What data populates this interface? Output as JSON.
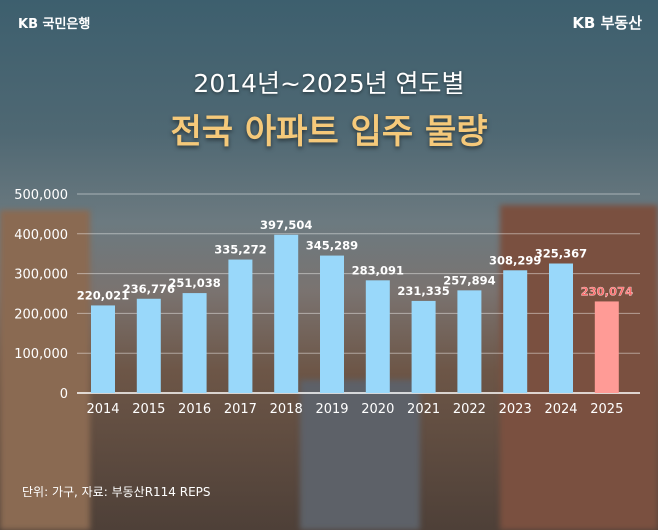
{
  "header": {
    "bank_logo": "KB 국민은행",
    "brand": "KB 부동산"
  },
  "title_line1": "2014년~2025년 연도별",
  "title_line2": "전국 아파트 입주 물량",
  "footer": "단위: 가구, 자료: 부동산R114 REPS",
  "colors": {
    "bar": "#99d8fa",
    "highlight": "#ff9b96",
    "title": "#f5c97a"
  },
  "chart_data": {
    "type": "bar",
    "categories": [
      "2014",
      "2015",
      "2016",
      "2017",
      "2018",
      "2019",
      "2020",
      "2021",
      "2022",
      "2023",
      "2024",
      "2025"
    ],
    "values": [
      220021,
      236776,
      251038,
      335272,
      397504,
      345289,
      283091,
      231335,
      257894,
      308299,
      325367,
      230074
    ],
    "value_labels": [
      "220,021",
      "236,776",
      "251,038",
      "335,272",
      "397,504",
      "345,289",
      "283,091",
      "231,335",
      "257,894",
      "308,299",
      "325,367",
      "230,074"
    ],
    "highlight_index": 11,
    "yticks": [
      "0",
      "100,000",
      "200,000",
      "300,000",
      "400,000",
      "500,000"
    ],
    "ylim": [
      0,
      500000
    ],
    "grid": true
  }
}
